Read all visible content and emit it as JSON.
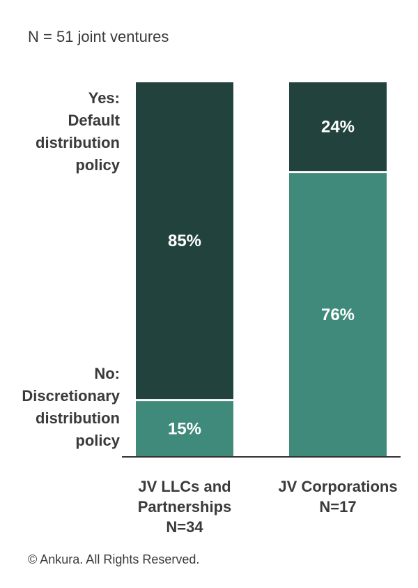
{
  "note": "N = 51 joint ventures",
  "footer": "© Ankura. All Rights Reserved.",
  "colors": {
    "yes": "#22433d",
    "no": "#3f8a7a",
    "axis": "#333333"
  },
  "chart_data": {
    "type": "bar",
    "stacked": true,
    "categories": [
      [
        "JV LLCs and",
        "Partnerships",
        "N=34"
      ],
      [
        "JV Corporations",
        "N=17"
      ]
    ],
    "series": [
      {
        "key": "no",
        "legend": [
          "No:",
          "Discretionary",
          "distribution",
          "policy"
        ],
        "values": [
          15,
          76
        ],
        "labels": [
          "15%",
          "76%"
        ]
      },
      {
        "key": "yes",
        "legend": [
          "Yes:",
          "Default",
          "distribution",
          "policy"
        ],
        "values": [
          85,
          24
        ],
        "labels": [
          "85%",
          "24%"
        ]
      }
    ],
    "ylim": [
      0,
      100
    ],
    "unit": "%"
  }
}
